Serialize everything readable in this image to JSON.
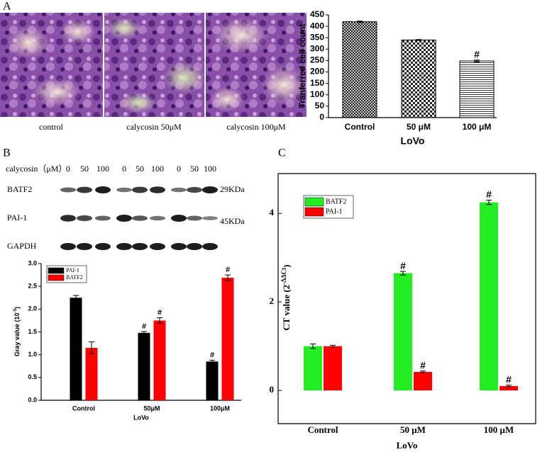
{
  "panels": [
    "A",
    "B",
    "C"
  ],
  "micrographs": [
    "control",
    "calycosin 50μM",
    "calycosin 100μM"
  ],
  "blot": {
    "header": "calycosin（μM）",
    "doses": [
      "0",
      "50",
      "100",
      "0",
      "50",
      "100",
      "0",
      "50",
      "100"
    ],
    "rows": [
      "BATF2",
      "PAI-1",
      "GAPDH"
    ],
    "sizes": [
      "29KDa",
      "45KDa"
    ]
  },
  "chart_data": [
    {
      "type": "bar",
      "ylabel": "Tranferred cell count",
      "xlabel": "LoVo",
      "categories": [
        "Control",
        "50 μM",
        "100 μM"
      ],
      "values": [
        420,
        340,
        248
      ],
      "errors": [
        3,
        2,
        4
      ],
      "flags": [
        null,
        null,
        "#"
      ],
      "color": "#000000",
      "ylim": [
        0,
        450
      ],
      "yticks": [
        0,
        50,
        100,
        150,
        200,
        250,
        300,
        350,
        400,
        450
      ]
    },
    {
      "type": "bar",
      "ylabel": "Gray value (10",
      "ylabel_sup": "-3",
      "ylabel_end": ")",
      "xlabel": "LoVo",
      "categories": [
        "Control",
        "50μM",
        "100μM"
      ],
      "series": [
        {
          "name": "PAI-1",
          "color": "#000000",
          "values": [
            2.25,
            1.48,
            0.85
          ],
          "errors": [
            0.05,
            0.03,
            0.03
          ],
          "flags": [
            null,
            "#",
            "#"
          ]
        },
        {
          "name": "BATF2",
          "color": "#ff0000",
          "values": [
            1.15,
            1.75,
            2.69
          ],
          "errors": [
            0.13,
            0.06,
            0.06
          ],
          "flags": [
            null,
            "#",
            "#"
          ]
        }
      ],
      "ylim": [
        0,
        3
      ],
      "yticks": [
        {
          "value": 0,
          "label": "0.0"
        },
        {
          "value": 0.5,
          "label": "0.5"
        },
        {
          "value": 1,
          "label": "1.0"
        },
        {
          "value": 1.5,
          "label": "1.5"
        },
        {
          "value": 2,
          "label": "2.0"
        },
        {
          "value": 2.5,
          "label": "2.5"
        },
        {
          "value": 3,
          "label": "3.0"
        }
      ],
      "legend": "upper left"
    },
    {
      "type": "bar",
      "ylabel": "CT value (2",
      "ylabel_sup": "-ΔΔCt",
      "ylabel_end": ")",
      "xlabel": "LoVo",
      "categories": [
        "Control",
        "50 μM",
        "100 μM"
      ],
      "series": [
        {
          "name": "BATF2",
          "color": "#22ee22",
          "values": [
            1.0,
            2.65,
            4.25
          ],
          "errors": [
            0.05,
            0.04,
            0.05
          ],
          "flags": [
            null,
            "#",
            "#"
          ]
        },
        {
          "name": "PAI-1",
          "color": "#ff0000",
          "values": [
            1.0,
            0.42,
            0.1
          ],
          "errors": [
            0.02,
            0.02,
            0.02
          ],
          "flags": [
            null,
            "#",
            "#"
          ]
        }
      ],
      "ylim": [
        -0.75,
        4.9
      ],
      "yticks": [
        0,
        2,
        4
      ],
      "legend": "upper left"
    }
  ]
}
